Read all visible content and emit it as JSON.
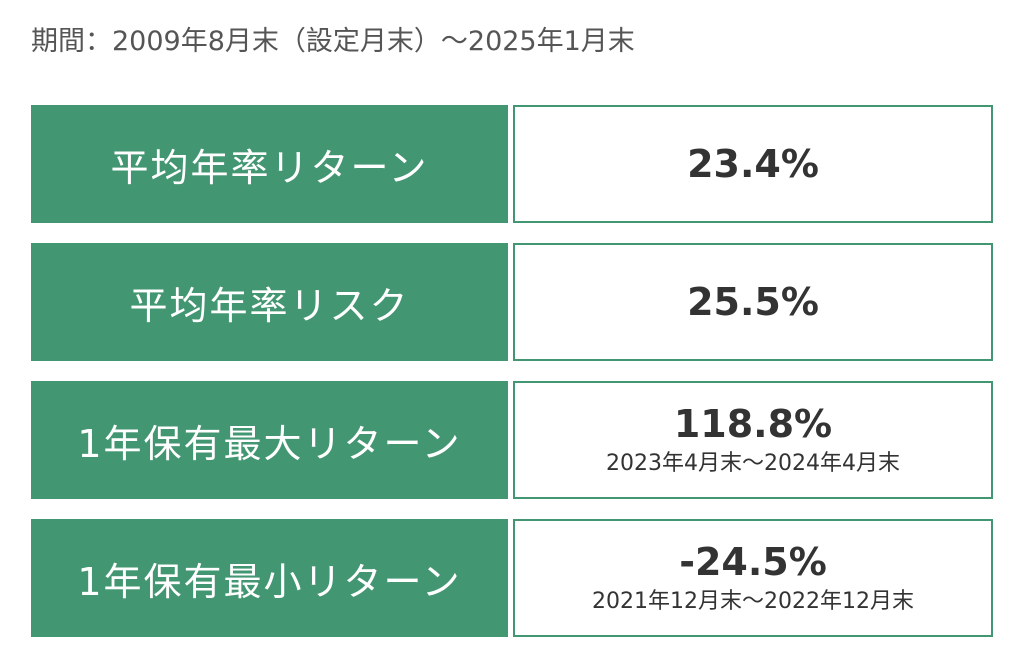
{
  "period": "期間：2009年8月末（設定月末）〜2025年1月末",
  "colors": {
    "label_bg": "#439672",
    "label_text": "#ffffff",
    "value_border": "#439672",
    "value_text": "#333333"
  },
  "rows": [
    {
      "label": "平均年率リターン",
      "value": "23.4%",
      "sub": ""
    },
    {
      "label": "平均年率リスク",
      "value": "25.5%",
      "sub": ""
    },
    {
      "label": "1年保有最大リターン",
      "value": "118.8%",
      "sub": "2023年4月末〜2024年4月末"
    },
    {
      "label": "1年保有最小リターン",
      "value": "-24.5%",
      "sub": "2021年12月末〜2022年12月末"
    }
  ]
}
